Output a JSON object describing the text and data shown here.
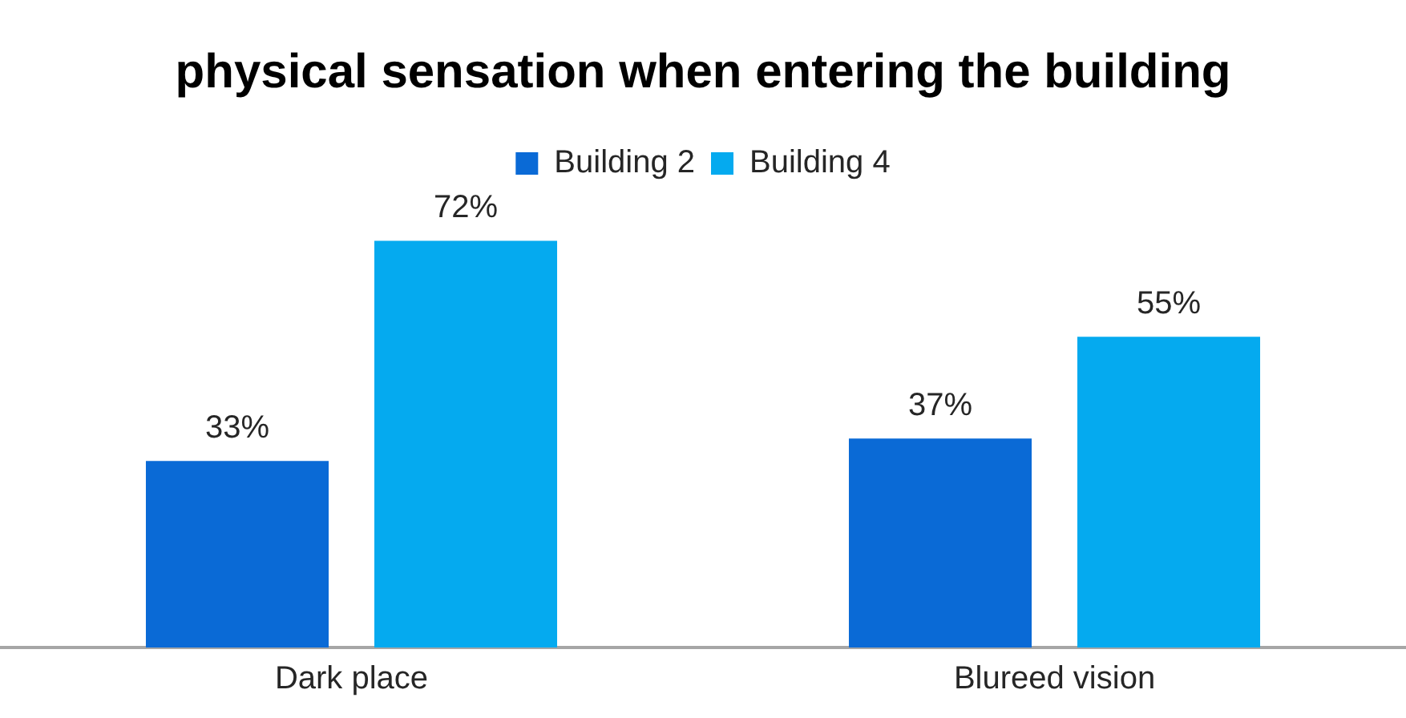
{
  "chart_data": {
    "type": "bar",
    "title": "physical sensation when entering the building",
    "categories": [
      "Dark place",
      "Blureed vision"
    ],
    "legend": "top",
    "grid": false,
    "series": [
      {
        "name": "Building 2",
        "color": "#0a6ad6",
        "values": [
          33,
          37
        ],
        "value_labels": [
          "33%",
          "37%"
        ]
      },
      {
        "name": "Building 4",
        "color": "#05aaef",
        "values": [
          72,
          55
        ],
        "value_labels": [
          "72%",
          "55%"
        ]
      }
    ]
  }
}
